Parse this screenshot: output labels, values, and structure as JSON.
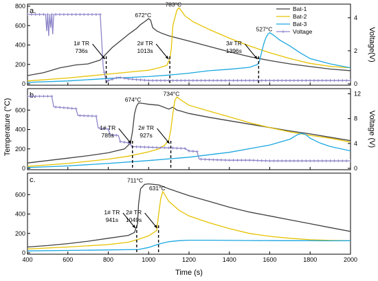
{
  "x_axis": {
    "label": "Time (s)",
    "range": [
      400,
      2000
    ],
    "ticks": [
      "400",
      "600",
      "800",
      "1000",
      "1200",
      "1400",
      "1600",
      "1800",
      "2000"
    ]
  },
  "y_axis_left_label": "Temperature (°C)",
  "legend": {
    "placement": "top-right",
    "entries": [
      {
        "name": "Bat-1",
        "color": "#404040"
      },
      {
        "name": "Bat-2",
        "color": "#e6c200"
      },
      {
        "name": "Bat-3",
        "color": "#1aa7e0"
      },
      {
        "name": "Voltage",
        "color": "#8c85c9"
      }
    ]
  },
  "chart_data": [
    {
      "panel": "a.",
      "type": "line",
      "xlim": [
        400,
        2000
      ],
      "ylim_left": [
        0,
        800
      ],
      "ylim_right": [
        0,
        4.7
      ],
      "ylabel_left": "",
      "ylabel_right": "Voltage(V)",
      "left_ticks": [
        "0",
        "200",
        "400",
        "600",
        "800"
      ],
      "right_ticks": [
        "0",
        "2",
        "4"
      ],
      "series": [
        {
          "name": "Bat-1",
          "axis": "left",
          "color": "#404040",
          "x": [
            400,
            480,
            560,
            640,
            700,
            760,
            820,
            880,
            900,
            920,
            940,
            960,
            980,
            1000,
            1010,
            1020,
            1040,
            1060,
            1100,
            1200,
            1300,
            1400,
            1500,
            1600,
            1700,
            1800,
            1900,
            2000
          ],
          "y": [
            85,
            115,
            165,
            195,
            205,
            245,
            375,
            475,
            510,
            540,
            570,
            610,
            640,
            672,
            655,
            580,
            545,
            525,
            495,
            440,
            385,
            330,
            280,
            240,
            205,
            178,
            152,
            135
          ]
        },
        {
          "name": "Bat-2",
          "axis": "left",
          "color": "#e6c200",
          "x": [
            400,
            600,
            800,
            900,
            1000,
            1050,
            1090,
            1105,
            1112,
            1120,
            1140,
            1150,
            1160,
            1180,
            1220,
            1300,
            1400,
            1500,
            1600,
            1700,
            1800,
            1900,
            2000
          ],
          "y": [
            30,
            60,
            100,
            120,
            140,
            165,
            190,
            260,
            360,
            600,
            760,
            783,
            760,
            700,
            640,
            560,
            470,
            390,
            320,
            260,
            210,
            180,
            165
          ]
        },
        {
          "name": "Bat-3",
          "axis": "left",
          "color": "#1aa7e0",
          "x": [
            400,
            600,
            800,
            1000,
            1100,
            1200,
            1300,
            1400,
            1500,
            1540,
            1550,
            1560,
            1570,
            1580,
            1590,
            1600,
            1620,
            1650,
            1700,
            1750,
            1800,
            1900,
            2000
          ],
          "y": [
            15,
            30,
            55,
            75,
            90,
            110,
            135,
            150,
            170,
            200,
            240,
            330,
            410,
            470,
            510,
            527,
            500,
            450,
            390,
            320,
            260,
            205,
            165
          ]
        },
        {
          "name": "Voltage",
          "axis": "right",
          "color": "#8c85c9",
          "x": [
            400,
            490,
            495,
            500,
            505,
            510,
            515,
            520,
            525,
            530,
            600,
            760,
            775,
            790,
            800,
            850,
            900,
            1000,
            1200,
            1400,
            1600,
            1800,
            2000
          ],
          "y": [
            4.2,
            4.2,
            3.2,
            4.2,
            2.9,
            4.2,
            3.4,
            4.2,
            3.0,
            4.2,
            4.2,
            4.2,
            1.0,
            0.1,
            0.2,
            0.4,
            0.3,
            0.2,
            0.2,
            0.2,
            0.2,
            0.2,
            0.2
          ]
        }
      ],
      "peak_labels": [
        {
          "text": "672°C",
          "x": 1000,
          "y": 672
        },
        {
          "text": "783°C",
          "x": 1150,
          "y": 783
        },
        {
          "text": "527°C",
          "x": 1600,
          "y": 527
        }
      ],
      "tr_markers": [
        {
          "lines": [
            "1# TR",
            "736s"
          ],
          "x": 790
        },
        {
          "lines": [
            "2# TR",
            "1013s"
          ],
          "x": 1105
        },
        {
          "lines": [
            "3# TR",
            "1396s"
          ],
          "x": 1545
        }
      ]
    },
    {
      "panel": "b.",
      "type": "line",
      "xlim": [
        400,
        2000
      ],
      "ylim_left": [
        0,
        800
      ],
      "ylim_right": [
        0,
        12.5
      ],
      "ylabel_left": "",
      "ylabel_right": "Voltage (V)",
      "left_ticks": [
        "0",
        "200",
        "400",
        "600"
      ],
      "right_ticks": [
        "0",
        "4",
        "8",
        "12"
      ],
      "series": [
        {
          "name": "Bat-1",
          "axis": "left",
          "color": "#404040",
          "x": [
            400,
            500,
            600,
            700,
            800,
            880,
            910,
            920,
            930,
            940,
            950,
            970,
            1000,
            1050,
            1100,
            1120,
            1140,
            1160,
            1200,
            1300,
            1400,
            1500,
            1600,
            1700,
            1800,
            1900,
            2000
          ],
          "y": [
            55,
            80,
            105,
            130,
            160,
            200,
            260,
            380,
            560,
            640,
            674,
            670,
            660,
            650,
            610,
            630,
            600,
            590,
            565,
            525,
            490,
            455,
            420,
            385,
            355,
            320,
            285
          ]
        },
        {
          "name": "Bat-2",
          "axis": "left",
          "color": "#e6c200",
          "x": [
            400,
            600,
            800,
            900,
            1000,
            1050,
            1080,
            1100,
            1110,
            1120,
            1130,
            1140,
            1150,
            1170,
            1200,
            1300,
            1400,
            1500,
            1600,
            1700,
            1800,
            1900,
            2000
          ],
          "y": [
            20,
            50,
            95,
            125,
            170,
            200,
            240,
            290,
            400,
            560,
            700,
            734,
            720,
            690,
            650,
            590,
            530,
            470,
            420,
            375,
            340,
            310,
            270
          ]
        },
        {
          "name": "Bat-3",
          "axis": "left",
          "color": "#1aa7e0",
          "x": [
            400,
            600,
            800,
            1000,
            1200,
            1400,
            1600,
            1700,
            1740,
            1760,
            1780,
            1800,
            1850,
            1900,
            2000
          ],
          "y": [
            8,
            25,
            50,
            80,
            115,
            165,
            240,
            300,
            350,
            360,
            345,
            310,
            260,
            225,
            180
          ]
        },
        {
          "name": "Voltage",
          "axis": "right",
          "color": "#8c85c9",
          "x": [
            400,
            520,
            530,
            640,
            650,
            740,
            750,
            800,
            810,
            850,
            860,
            900,
            920,
            1000,
            1100,
            1180,
            1200,
            1240,
            1250,
            1300,
            1400,
            1500,
            1600,
            1800,
            2000
          ],
          "y": [
            11.6,
            11.6,
            9.9,
            9.6,
            8.5,
            8.4,
            6.5,
            6.3,
            5.4,
            5.3,
            4.3,
            4.1,
            3.5,
            3.4,
            3.3,
            3.2,
            2.8,
            2.7,
            1.5,
            1.4,
            1.3,
            1.3,
            1.2,
            1.2,
            1.2
          ]
        }
      ],
      "peak_labels": [
        {
          "text": "674°C",
          "x": 950,
          "y": 674
        },
        {
          "text": "734°C",
          "x": 1140,
          "y": 734
        }
      ],
      "tr_markers": [
        {
          "lines": [
            "1# TR",
            "785s"
          ],
          "x": 920
        },
        {
          "lines": [
            "2# TR",
            "927s"
          ],
          "x": 1110
        }
      ]
    },
    {
      "panel": "c.",
      "type": "line",
      "xlim": [
        400,
        2000
      ],
      "ylim_left": [
        0,
        800
      ],
      "ylabel_left": "",
      "left_ticks": [
        "0",
        "200",
        "400",
        "600"
      ],
      "series": [
        {
          "name": "Bat-1",
          "axis": "left",
          "color": "#404040",
          "x": [
            400,
            500,
            600,
            700,
            800,
            900,
            930,
            945,
            950,
            960,
            980,
            1000,
            1050,
            1100,
            1200,
            1300,
            1400,
            1500,
            1600,
            1700,
            1800,
            1900,
            2000
          ],
          "y": [
            60,
            75,
            95,
            120,
            150,
            180,
            210,
            300,
            500,
            660,
            705,
            711,
            700,
            660,
            590,
            530,
            470,
            420,
            380,
            340,
            300,
            260,
            220
          ]
        },
        {
          "name": "Bat-2",
          "axis": "left",
          "color": "#e6c200",
          "x": [
            400,
            600,
            800,
            900,
            950,
            1000,
            1040,
            1050,
            1060,
            1070,
            1080,
            1100,
            1150,
            1200,
            1300,
            1400,
            1500,
            1600,
            1700,
            1800,
            1900,
            2000
          ],
          "y": [
            40,
            60,
            85,
            110,
            140,
            175,
            230,
            400,
            560,
            631,
            600,
            530,
            440,
            380,
            310,
            250,
            200,
            170,
            150,
            135,
            128,
            125
          ]
        },
        {
          "name": "Bat-3",
          "axis": "left",
          "color": "#1aa7e0",
          "x": [
            400,
            600,
            800,
            950,
            1000,
            1050,
            1100,
            1150,
            1200,
            1300,
            1400,
            1500,
            1600,
            1700,
            1800,
            1900,
            2000
          ],
          "y": [
            20,
            25,
            30,
            35,
            55,
            90,
            115,
            125,
            130,
            130,
            128,
            127,
            126,
            125,
            125,
            124,
            125
          ]
        }
      ],
      "peak_labels": [
        {
          "text": "711°C",
          "x": 960,
          "y": 711
        },
        {
          "text": "631°C",
          "x": 1070,
          "y": 631
        }
      ],
      "tr_markers": [
        {
          "lines": [
            "1# TR",
            "941s"
          ],
          "x": 941
        },
        {
          "lines": [
            "2# TR",
            "1049s"
          ],
          "x": 1049
        }
      ]
    }
  ]
}
